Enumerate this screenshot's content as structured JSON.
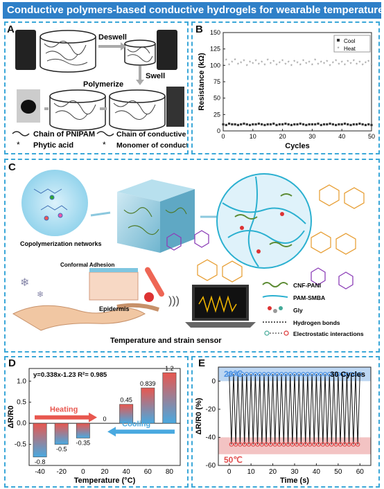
{
  "title": "Conductive polymers-based conductive hydrogels for wearable temperature sensors",
  "panel_labels": {
    "a": "A",
    "b": "B",
    "c": "C",
    "d": "D",
    "e": "E"
  },
  "panel_a": {
    "deswell": "Deswell",
    "swell": "Swell",
    "polymerize": "Polymerize",
    "legend": {
      "pnipam": "Chain of PNIPAM",
      "phytic": "Phytic acid",
      "conductive_chain": "Chain of conductive polymer",
      "monomer": "Monomer of conductive polymer"
    }
  },
  "panel_c": {
    "copolymerization": "Copolymerization networks",
    "conformal": "Conformal Adhesion",
    "epidermis": "Epidermis",
    "sensor": "Temperature and strain sensor",
    "legend": {
      "cnf_pani": "CNF-PANI",
      "pam_smba": "PAM-SMBA",
      "gly": "Gly",
      "hbond": "Hydrogen bonds",
      "electrostatic": "Electrostatic interactions"
    },
    "colors": {
      "network": "#2bb0d0",
      "polymer": "#5b8a32",
      "sugar": "#e8a13a",
      "chain": "#8d3fb8"
    }
  },
  "chart_data": [
    {
      "type": "scatter",
      "panel": "B",
      "xlabel": "Cycles",
      "ylabel": "Resistance (kΩ)",
      "xlim": [
        0,
        50
      ],
      "ylim": [
        0,
        150
      ],
      "xticks": [
        0,
        10,
        20,
        30,
        40,
        50
      ],
      "yticks": [
        0,
        25,
        50,
        75,
        100,
        125,
        150
      ],
      "legend_position": "top-right",
      "series": [
        {
          "name": "Cool",
          "marker": "filled-square",
          "color": "#333333",
          "values": [
            10,
            9,
            11,
            10,
            10,
            9,
            10,
            11,
            10,
            9,
            10,
            10,
            11,
            10,
            9,
            10,
            10,
            11,
            9,
            10,
            10,
            11,
            10,
            9,
            10,
            10,
            11,
            10,
            9,
            10,
            10,
            10,
            11,
            9,
            10,
            10,
            11,
            10,
            9,
            10,
            10,
            11,
            10,
            9,
            10,
            10,
            11,
            10,
            9,
            10,
            9
          ]
        },
        {
          "name": "Heat",
          "marker": "star",
          "color": "#888888",
          "values": [
            101,
            107,
            100,
            104,
            108,
            101,
            103,
            106,
            99,
            104,
            102,
            106,
            101,
            104,
            100,
            107,
            102,
            105,
            100,
            103,
            106,
            101,
            104,
            99,
            105,
            103,
            100,
            106,
            102,
            104,
            100,
            107,
            101,
            104,
            102,
            105,
            99,
            103,
            106,
            101,
            104,
            100,
            105,
            102,
            106,
            101,
            104,
            100,
            103,
            105,
            100
          ]
        }
      ]
    },
    {
      "type": "bar",
      "panel": "D",
      "xlabel": "Temperature (°C)",
      "ylabel": "ΔR/R0",
      "equation": "y=0.338x-1.23  R²= 0.985",
      "categories": [
        -40,
        -20,
        0,
        20,
        40,
        60,
        80
      ],
      "xticks": [
        "-40",
        "-20",
        "0",
        "20",
        "40",
        "60",
        "80"
      ],
      "values": [
        -0.8,
        -0.5,
        -0.35,
        0,
        0.45,
        0.839,
        1.2
      ],
      "labels": [
        "-0.8",
        "-0.5",
        "-0.35",
        "0",
        "0.45",
        "0.839",
        "1.2"
      ],
      "ylim": [
        -1.0,
        1.3
      ],
      "yticks": [
        -0.5,
        0.0,
        0.5,
        1.0
      ],
      "heating_label": "Heating",
      "cooling_label": "Cooling",
      "heating_color": "#e8574f",
      "cooling_color": "#49a9e0"
    },
    {
      "type": "line",
      "panel": "E",
      "xlabel": "Time (s)",
      "ylabel": "ΔR/R0 (%)",
      "xlim": [
        -5,
        65
      ],
      "ylim": [
        -60,
        10
      ],
      "xticks": [
        0,
        10,
        20,
        30,
        40,
        50,
        60
      ],
      "yticks": [
        -60,
        -40,
        -20,
        0
      ],
      "cycles_label": "30 Cycles",
      "high_label": "20℃",
      "low_label": "50℃",
      "cycles": 30,
      "x_start": 0,
      "x_end": 60,
      "high_value": 5,
      "low_value": -45,
      "high_color": "#4a90e2",
      "low_color": "#e14c4c"
    }
  ]
}
